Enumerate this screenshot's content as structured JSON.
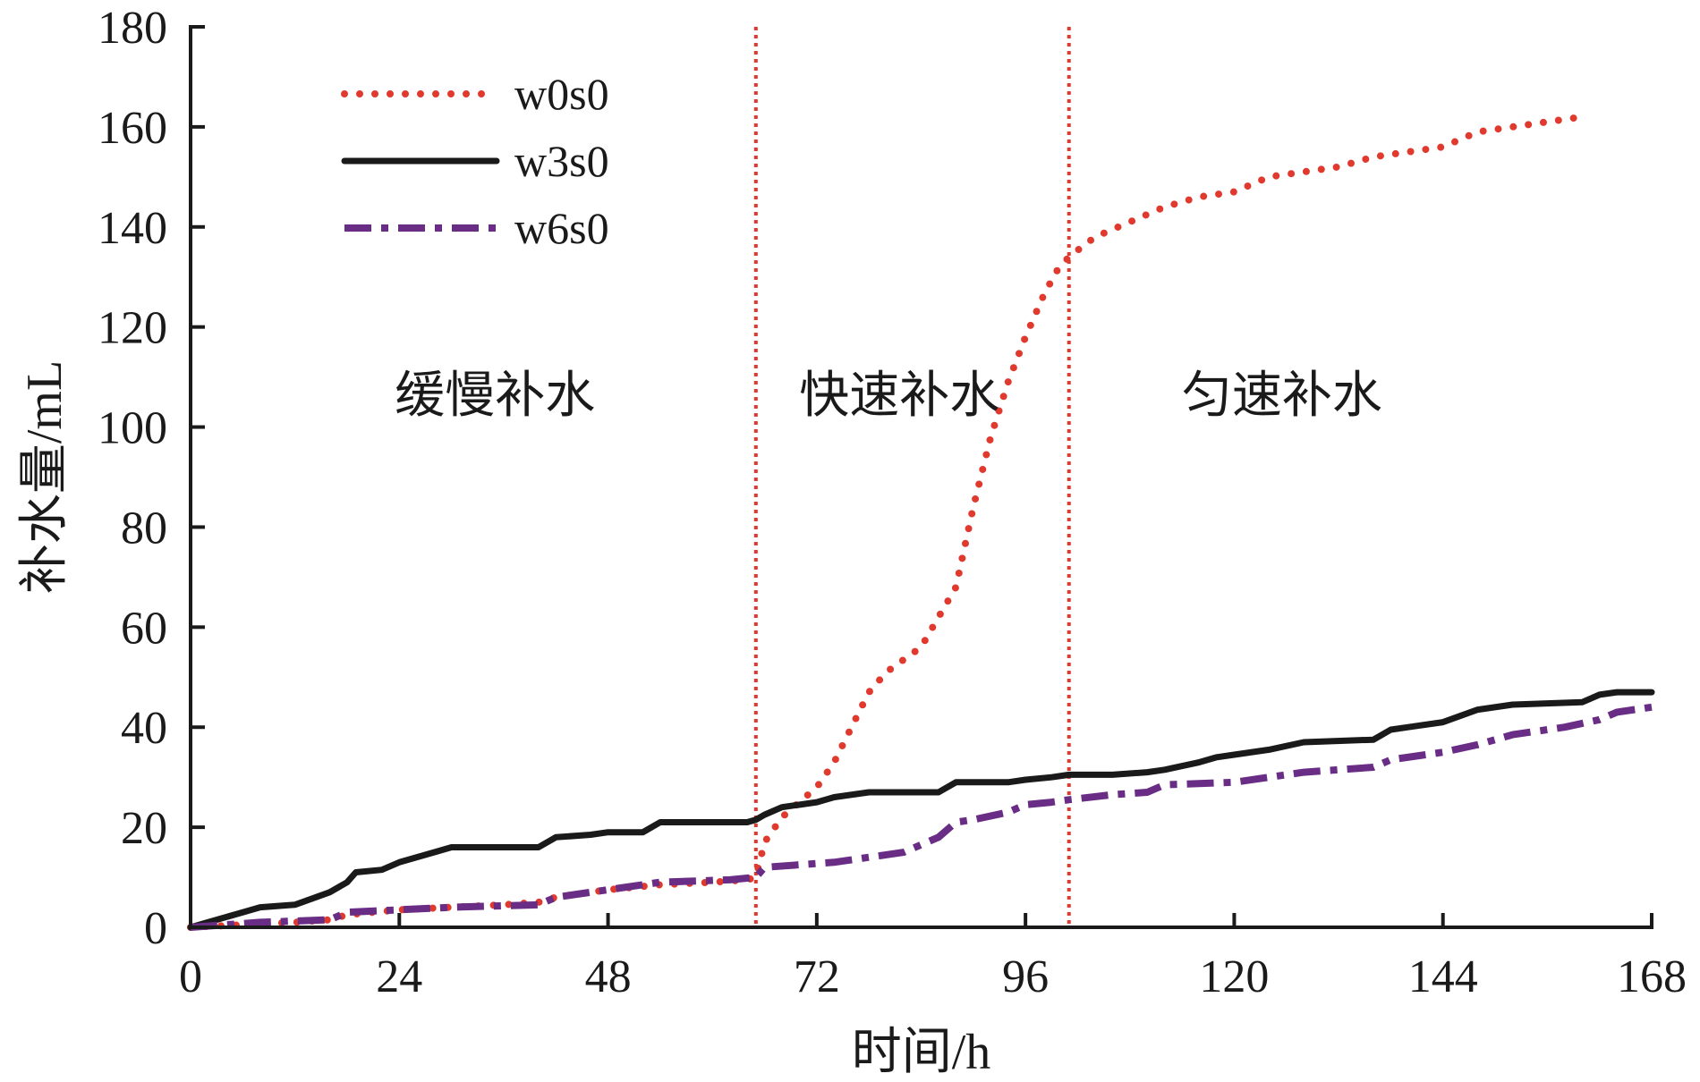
{
  "chart_data": {
    "type": "line",
    "xlabel": "时间/h",
    "ylabel": "补水量/mL",
    "xlim": [
      0,
      168
    ],
    "ylim": [
      0,
      180
    ],
    "x_ticks": [
      0,
      24,
      48,
      72,
      96,
      120,
      144,
      168
    ],
    "y_ticks": [
      0,
      20,
      40,
      60,
      80,
      100,
      120,
      140,
      160,
      180
    ],
    "grid": false,
    "legend_position": "top-left",
    "phase_boundaries": [
      65,
      101
    ],
    "phase_labels": [
      {
        "text": "缓慢补水",
        "x": 35,
        "y": 103
      },
      {
        "text": "快速补水",
        "x": 81.5,
        "y": 103
      },
      {
        "text": "匀速补水",
        "x": 125.5,
        "y": 103
      }
    ],
    "series": [
      {
        "name": "w0s0",
        "color": "#e03a2f",
        "style": "dotted",
        "x": [
          0,
          6,
          12,
          16,
          18,
          24,
          30,
          36,
          40,
          42,
          48,
          54,
          60,
          64,
          65,
          66,
          68,
          70,
          72,
          74,
          76,
          78,
          80,
          84,
          88,
          90,
          92,
          94,
          96,
          98,
          99.5,
          101,
          104,
          108,
          112,
          116,
          120,
          124,
          128,
          132,
          136,
          140,
          144,
          148,
          152,
          156,
          160
        ],
        "values": [
          0,
          0.5,
          1,
          1.5,
          2.5,
          3.5,
          4,
          4.5,
          5,
          6,
          7.5,
          8.5,
          9,
          9.5,
          10,
          17,
          22,
          25,
          28,
          33,
          40,
          47,
          51,
          56,
          68,
          84,
          98,
          109,
          118,
          126,
          131,
          134,
          138,
          141,
          144,
          146,
          147,
          150,
          151,
          152,
          154,
          155,
          156,
          159,
          160,
          161,
          162
        ]
      },
      {
        "name": "w3s0",
        "color": "#1a1a1a",
        "style": "solid",
        "x": [
          0,
          2,
          6,
          8,
          12,
          16,
          18,
          19,
          22,
          24,
          28,
          30,
          40,
          42,
          46,
          48,
          52,
          54,
          62,
          64,
          65,
          66,
          68,
          72,
          74,
          78,
          86,
          88,
          94,
          96,
          99,
          101,
          106,
          110,
          112,
          116,
          118,
          120,
          124,
          128,
          136,
          138,
          140,
          144,
          148,
          152,
          160,
          162,
          164,
          168
        ],
        "values": [
          0,
          1,
          3,
          4,
          4.5,
          7,
          9,
          11,
          11.5,
          13,
          15,
          16,
          16,
          18,
          18.5,
          19,
          19,
          21,
          21,
          21,
          21.5,
          22.5,
          24,
          25,
          26,
          27,
          27,
          29,
          29,
          29.5,
          30,
          30.5,
          30.5,
          31,
          31.5,
          33,
          34,
          34.5,
          35.5,
          37,
          37.5,
          39.5,
          40,
          41,
          43.5,
          44.5,
          45,
          46.5,
          47,
          47
        ]
      },
      {
        "name": "w6s0",
        "color": "#6a2d86",
        "style": "dashdot",
        "x": [
          0,
          4,
          8,
          16,
          18,
          24,
          30,
          40,
          42,
          48,
          54,
          62,
          65,
          66,
          70,
          74,
          78,
          82,
          84,
          86,
          88,
          90,
          94,
          96,
          99,
          101,
          106,
          110,
          112,
          120,
          124,
          128,
          136,
          138,
          144,
          148,
          152,
          158,
          162,
          164,
          168
        ],
        "values": [
          0,
          0.5,
          1,
          1.5,
          3,
          3.5,
          4,
          4.5,
          6,
          7.5,
          9,
          9.5,
          10,
          12,
          12.5,
          13,
          14,
          15,
          16.5,
          18,
          21,
          21.5,
          23,
          24.5,
          25,
          25.5,
          26.5,
          27,
          28.5,
          29,
          30,
          31,
          32,
          33.5,
          35,
          36.5,
          38.5,
          40,
          41.5,
          43,
          44
        ]
      }
    ]
  }
}
